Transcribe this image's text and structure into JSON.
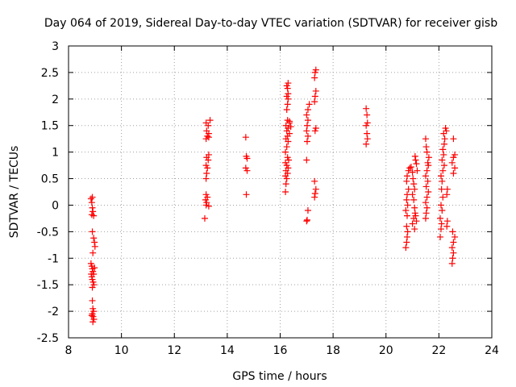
{
  "chart_data": {
    "type": "scatter",
    "title": "Day 064 of 2019, Sidereal Day-to-day VTEC variation (SDTVAR) for receiver gisb",
    "xlabel": "GPS time / hours",
    "ylabel": "SDTVAR / TECUs",
    "xlim": [
      8,
      24
    ],
    "ylim": [
      -2.5,
      3
    ],
    "xticks": [
      8,
      10,
      12,
      14,
      16,
      18,
      20,
      22,
      24
    ],
    "xtick_labels": [
      "8",
      "10",
      "12",
      "14",
      "16",
      "18",
      "20",
      "22",
      "24"
    ],
    "yticks": [
      -2.5,
      -2,
      -1.5,
      -1,
      -0.5,
      0,
      0.5,
      1,
      1.5,
      2,
      2.5,
      3
    ],
    "ytick_labels": [
      "-2.5",
      "-2",
      "-1.5",
      "-1",
      "-0.5",
      "0",
      "0.5",
      "1",
      "1.5",
      "2",
      "2.5",
      "3"
    ],
    "grid": true,
    "marker": "plus",
    "color": "#ff0000",
    "series": [
      {
        "name": "SDTVAR",
        "points": [
          [
            8.85,
            0.12
          ],
          [
            8.88,
            0.05
          ],
          [
            8.9,
            -0.05
          ],
          [
            8.92,
            -0.12
          ],
          [
            8.88,
            -0.18
          ],
          [
            8.95,
            -0.2
          ],
          [
            8.9,
            0.15
          ],
          [
            8.9,
            -0.5
          ],
          [
            8.95,
            -0.62
          ],
          [
            8.98,
            -0.7
          ],
          [
            9.0,
            -0.78
          ],
          [
            8.92,
            -0.9
          ],
          [
            8.85,
            -1.1
          ],
          [
            8.88,
            -1.15
          ],
          [
            8.9,
            -1.2
          ],
          [
            8.92,
            -1.25
          ],
          [
            8.95,
            -1.3
          ],
          [
            8.88,
            -1.35
          ],
          [
            8.9,
            -1.4
          ],
          [
            8.93,
            -1.45
          ],
          [
            8.96,
            -1.5
          ],
          [
            8.9,
            -1.55
          ],
          [
            8.86,
            -1.3
          ],
          [
            8.98,
            -1.18
          ],
          [
            8.9,
            -1.8
          ],
          [
            8.92,
            -1.95
          ],
          [
            8.95,
            -2.0
          ],
          [
            8.9,
            -2.05
          ],
          [
            8.93,
            -2.1
          ],
          [
            8.96,
            -2.15
          ],
          [
            8.92,
            -2.2
          ],
          [
            8.88,
            -2.08
          ],
          [
            13.15,
            -0.25
          ],
          [
            13.2,
            0.0
          ],
          [
            13.22,
            0.05
          ],
          [
            13.18,
            0.1
          ],
          [
            13.25,
            0.15
          ],
          [
            13.2,
            0.2
          ],
          [
            13.3,
            -0.02
          ],
          [
            13.2,
            0.5
          ],
          [
            13.22,
            0.6
          ],
          [
            13.25,
            0.7
          ],
          [
            13.2,
            0.75
          ],
          [
            13.28,
            0.85
          ],
          [
            13.22,
            0.9
          ],
          [
            13.3,
            0.95
          ],
          [
            13.2,
            1.25
          ],
          [
            13.25,
            1.3
          ],
          [
            13.3,
            1.35
          ],
          [
            13.22,
            1.4
          ],
          [
            13.28,
            1.5
          ],
          [
            13.2,
            1.55
          ],
          [
            13.35,
            1.6
          ],
          [
            13.3,
            1.28
          ],
          [
            14.7,
            1.28
          ],
          [
            14.72,
            0.92
          ],
          [
            14.75,
            0.88
          ],
          [
            14.7,
            0.7
          ],
          [
            14.75,
            0.65
          ],
          [
            14.72,
            0.2
          ],
          [
            16.2,
            0.25
          ],
          [
            16.22,
            0.4
          ],
          [
            16.25,
            0.5
          ],
          [
            16.2,
            0.55
          ],
          [
            16.28,
            0.6
          ],
          [
            16.22,
            0.65
          ],
          [
            16.3,
            0.7
          ],
          [
            16.25,
            0.75
          ],
          [
            16.2,
            0.8
          ],
          [
            16.32,
            0.85
          ],
          [
            16.28,
            0.9
          ],
          [
            16.2,
            1.0
          ],
          [
            16.25,
            1.1
          ],
          [
            16.3,
            1.2
          ],
          [
            16.22,
            1.25
          ],
          [
            16.28,
            1.3
          ],
          [
            16.35,
            1.35
          ],
          [
            16.25,
            1.4
          ],
          [
            16.3,
            1.45
          ],
          [
            16.22,
            1.5
          ],
          [
            16.35,
            1.55
          ],
          [
            16.28,
            1.6
          ],
          [
            16.25,
            1.8
          ],
          [
            16.28,
            1.9
          ],
          [
            16.3,
            2.0
          ],
          [
            16.25,
            2.05
          ],
          [
            16.3,
            2.1
          ],
          [
            16.28,
            2.2
          ],
          [
            16.25,
            2.25
          ],
          [
            16.3,
            2.3
          ],
          [
            16.35,
            1.58
          ],
          [
            16.4,
            1.48
          ],
          [
            17.0,
            -0.3
          ],
          [
            17.02,
            -0.28
          ],
          [
            17.05,
            -0.1
          ],
          [
            17.0,
            0.85
          ],
          [
            17.02,
            1.2
          ],
          [
            17.05,
            1.3
          ],
          [
            17.0,
            1.4
          ],
          [
            17.02,
            1.5
          ],
          [
            17.05,
            1.6
          ],
          [
            17.0,
            1.7
          ],
          [
            17.05,
            1.8
          ],
          [
            17.1,
            1.9
          ],
          [
            17.3,
            0.15
          ],
          [
            17.32,
            0.22
          ],
          [
            17.35,
            0.3
          ],
          [
            17.3,
            0.45
          ],
          [
            17.32,
            1.4
          ],
          [
            17.35,
            1.45
          ],
          [
            17.3,
            1.95
          ],
          [
            17.32,
            2.05
          ],
          [
            17.35,
            2.15
          ],
          [
            17.3,
            2.4
          ],
          [
            17.32,
            2.5
          ],
          [
            17.35,
            2.55
          ],
          [
            19.25,
            1.82
          ],
          [
            19.28,
            1.7
          ],
          [
            19.3,
            1.55
          ],
          [
            19.25,
            1.5
          ],
          [
            19.28,
            1.35
          ],
          [
            19.3,
            1.25
          ],
          [
            19.25,
            1.15
          ],
          [
            20.75,
            -0.8
          ],
          [
            20.78,
            -0.7
          ],
          [
            20.8,
            -0.6
          ],
          [
            20.82,
            -0.5
          ],
          [
            20.78,
            -0.4
          ],
          [
            20.8,
            -0.2
          ],
          [
            20.75,
            -0.1
          ],
          [
            20.82,
            0.0
          ],
          [
            20.78,
            0.1
          ],
          [
            20.8,
            0.2
          ],
          [
            20.85,
            0.3
          ],
          [
            20.78,
            0.45
          ],
          [
            20.8,
            0.55
          ],
          [
            20.85,
            0.65
          ],
          [
            20.9,
            0.7
          ],
          [
            20.95,
            0.72
          ],
          [
            21.0,
            0.62
          ],
          [
            21.02,
            0.5
          ],
          [
            21.05,
            0.4
          ],
          [
            21.08,
            0.3
          ],
          [
            21.0,
            0.2
          ],
          [
            21.05,
            0.1
          ],
          [
            21.08,
            -0.05
          ],
          [
            21.1,
            -0.15
          ],
          [
            21.05,
            -0.25
          ],
          [
            21.0,
            -0.35
          ],
          [
            21.08,
            -0.45
          ],
          [
            21.12,
            0.85
          ],
          [
            21.15,
            0.78
          ],
          [
            21.1,
            0.92
          ],
          [
            21.18,
            0.65
          ],
          [
            21.12,
            -0.2
          ],
          [
            21.15,
            -0.3
          ],
          [
            21.5,
            -0.25
          ],
          [
            21.52,
            -0.15
          ],
          [
            21.55,
            -0.05
          ],
          [
            21.5,
            0.05
          ],
          [
            21.55,
            0.15
          ],
          [
            21.6,
            0.25
          ],
          [
            21.52,
            0.35
          ],
          [
            21.58,
            0.45
          ],
          [
            21.5,
            0.55
          ],
          [
            21.55,
            0.65
          ],
          [
            21.6,
            0.75
          ],
          [
            21.58,
            0.8
          ],
          [
            21.62,
            0.9
          ],
          [
            21.55,
            1.0
          ],
          [
            21.5,
            1.25
          ],
          [
            21.52,
            1.1
          ],
          [
            22.05,
            -0.6
          ],
          [
            22.08,
            -0.45
          ],
          [
            22.1,
            -0.35
          ],
          [
            22.05,
            -0.25
          ],
          [
            22.12,
            -0.1
          ],
          [
            22.08,
            0.0
          ],
          [
            22.15,
            0.15
          ],
          [
            22.1,
            0.3
          ],
          [
            22.12,
            0.45
          ],
          [
            22.08,
            0.55
          ],
          [
            22.15,
            0.65
          ],
          [
            22.2,
            0.75
          ],
          [
            22.12,
            0.85
          ],
          [
            22.18,
            0.95
          ],
          [
            22.15,
            1.05
          ],
          [
            22.2,
            1.15
          ],
          [
            22.22,
            1.25
          ],
          [
            22.18,
            1.35
          ],
          [
            22.25,
            1.45
          ],
          [
            22.28,
            1.4
          ],
          [
            22.3,
            -0.4
          ],
          [
            22.32,
            -0.3
          ],
          [
            22.3,
            0.2
          ],
          [
            22.32,
            0.3
          ],
          [
            22.5,
            -1.1
          ],
          [
            22.52,
            -1.0
          ],
          [
            22.55,
            -0.9
          ],
          [
            22.5,
            -0.8
          ],
          [
            22.55,
            -0.7
          ],
          [
            22.6,
            -0.6
          ],
          [
            22.52,
            -0.5
          ],
          [
            22.55,
            0.6
          ],
          [
            22.6,
            0.7
          ],
          [
            22.5,
            0.8
          ],
          [
            22.55,
            0.9
          ],
          [
            22.6,
            0.95
          ],
          [
            22.55,
            1.25
          ]
        ]
      }
    ]
  }
}
